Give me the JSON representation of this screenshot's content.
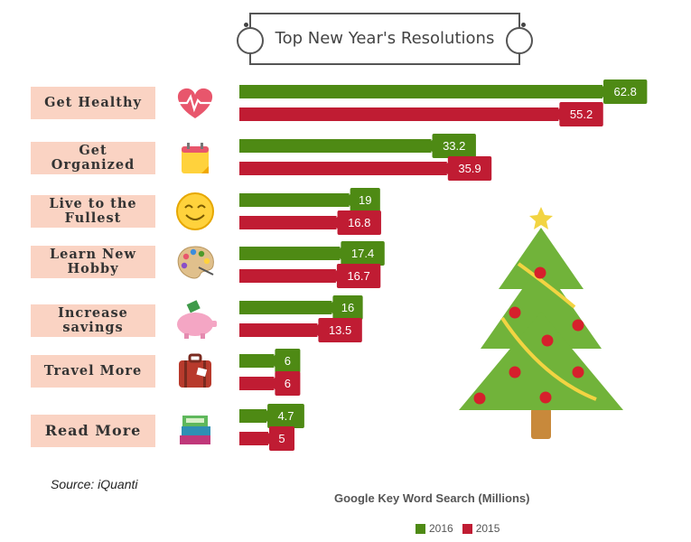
{
  "title": "Top New Year's Resolutions",
  "source": "Source: iQuanti",
  "caption": "Google Key Word Search (Millions)",
  "colors": {
    "2016": "#4e8a14",
    "2015": "#c01c33"
  },
  "legend": [
    "2016",
    "2015"
  ],
  "chart_data": {
    "type": "bar",
    "orientation": "horizontal",
    "categories": [
      "Get Healthy",
      "Get Organized",
      "Live to the Fullest",
      "Learn New Hobby",
      "Increase savings",
      "Travel More",
      "Read More"
    ],
    "category_icons": [
      "heartbeat-icon",
      "calendar-icon",
      "smiley-icon",
      "palette-icon",
      "piggy-bank-icon",
      "suitcase-icon",
      "books-icon"
    ],
    "series": [
      {
        "name": "2016",
        "values": [
          62.8,
          33.2,
          19,
          17.4,
          16,
          6,
          4.7
        ]
      },
      {
        "name": "2015",
        "values": [
          55.2,
          35.9,
          16.8,
          16.7,
          13.5,
          6,
          5
        ]
      }
    ],
    "value_labels": [
      [
        "62.8",
        "33.2",
        "19",
        "17.4",
        "16",
        "6",
        "4.7"
      ],
      [
        "55.2",
        "35.9",
        "16.8",
        "16.7",
        "13.5",
        "6",
        "5"
      ]
    ],
    "xlim": [
      0,
      62.8
    ],
    "legend_position": "bottom",
    "grid": false
  }
}
